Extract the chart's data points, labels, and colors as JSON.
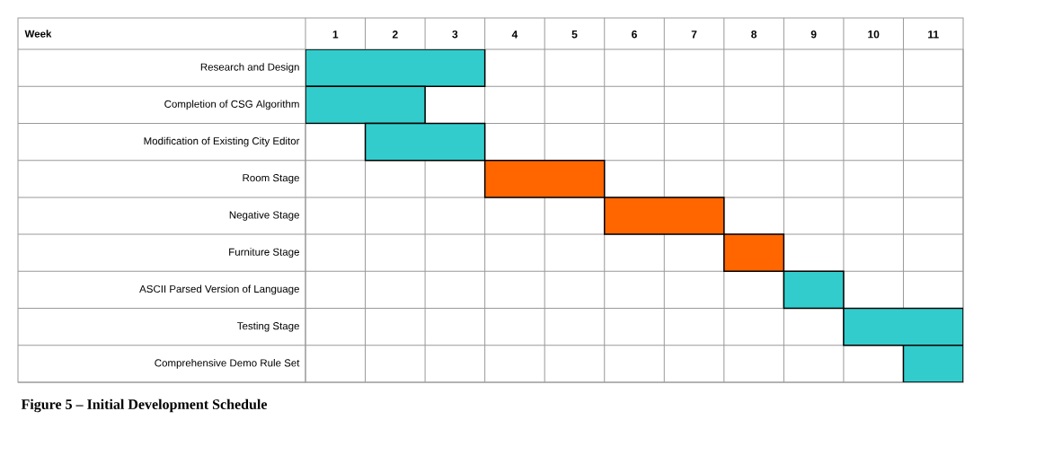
{
  "chart_data": {
    "type": "bar",
    "orientation": "horizontal",
    "categories": [
      "Research and Design",
      "Completion of CSG Algorithm",
      "Modification of Existing City Editor",
      "Room Stage",
      "Negative Stage",
      "Furniture Stage",
      "ASCII Parsed Version of Language",
      "Testing Stage",
      "Comprehensive Demo Rule Set"
    ],
    "base": [
      0.5,
      0.5,
      1.5,
      3.5,
      5.5,
      7.5,
      8.5,
      9.5,
      10.5
    ],
    "values": [
      3,
      2,
      2,
      2,
      2,
      1,
      1,
      2,
      1
    ],
    "colors": [
      "#33cccc",
      "#33cccc",
      "#33cccc",
      "#ff6600",
      "#ff6600",
      "#ff6600",
      "#33cccc",
      "#33cccc",
      "#33cccc"
    ],
    "xlim": [
      0.5,
      11.5
    ],
    "xticks": [
      1,
      2,
      3,
      4,
      5,
      6,
      7,
      8,
      9,
      10,
      11
    ],
    "grid": true,
    "annotations": [
      "Week",
      "Figure 5 – Initial Development Schedule"
    ]
  }
}
